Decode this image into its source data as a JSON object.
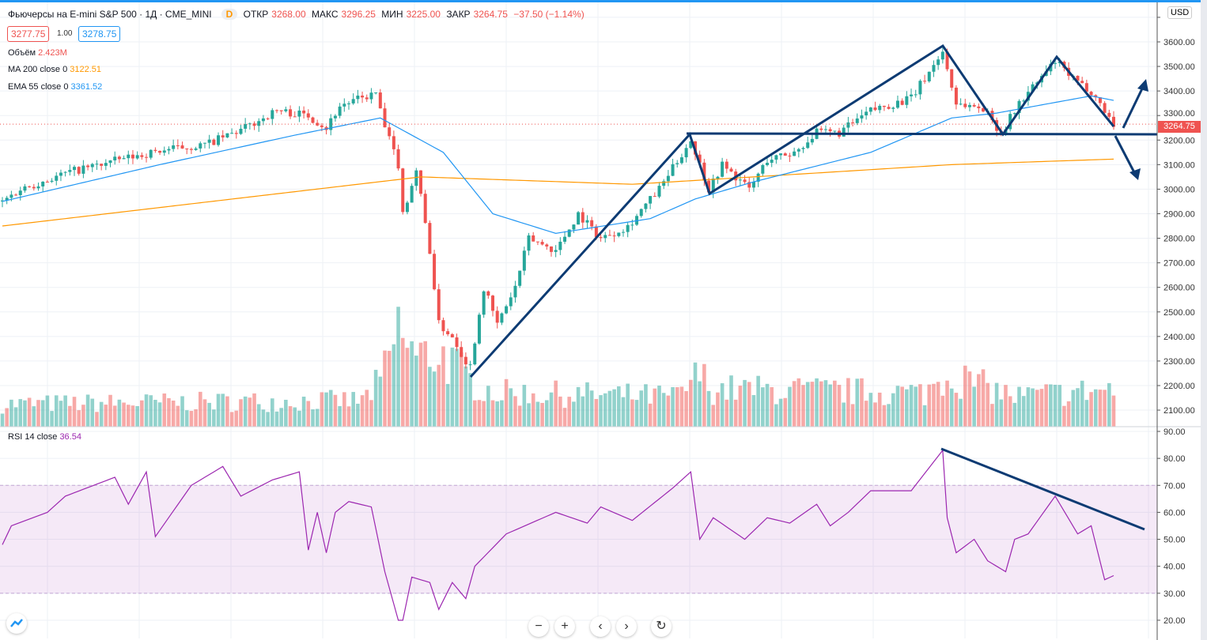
{
  "header": {
    "title": "Фьючерсы на E-mini S&P 500 · 1Д · CME_MINI",
    "badge": "D",
    "open_label": "ОТКР",
    "open": "3268.00",
    "high_label": "МАКС",
    "high": "3296.25",
    "low_label": "МИН",
    "low": "3225.00",
    "close_label": "ЗАКР",
    "close": "3264.75",
    "change": "−37.50 (−1.14%)"
  },
  "bid": "3277.75",
  "spread": "1.00",
  "ask": "3278.75",
  "legend": {
    "volume_label": "Объём",
    "volume": "2.423M",
    "ma_label": "MA 200 close 0",
    "ma": "3122.51",
    "ema_label": "EMA 55 close 0",
    "ema": "3361.52",
    "rsi_label": "RSI 14 close",
    "rsi": "36.54"
  },
  "currency": "USD",
  "last_price": "3264.75",
  "colors": {
    "up": "#26a69a",
    "down": "#ef5350",
    "ma": "#ff9800",
    "ema": "#2196f3",
    "rsi": "#9c27b0",
    "drawing": "#0d3b73"
  },
  "toolbar": {
    "zoom_out": "−",
    "zoom_in": "+",
    "back": "‹",
    "forward": "›",
    "reset": "↻"
  },
  "chart_data": {
    "type": "candlestick",
    "price_ticks": [
      3600,
      3500,
      3400,
      3300,
      3200,
      3100,
      3000,
      2900,
      2800,
      2700,
      2600,
      2500,
      2400,
      2300,
      2200,
      2100
    ],
    "price_range": [
      2060,
      3700
    ],
    "close_path": [
      [
        0,
        2950
      ],
      [
        4,
        3000
      ],
      [
        15,
        3070
      ],
      [
        26,
        3120
      ],
      [
        36,
        3160
      ],
      [
        45,
        3180
      ],
      [
        53,
        3240
      ],
      [
        61,
        3320
      ],
      [
        68,
        3300
      ],
      [
        72,
        3250
      ],
      [
        75,
        3340
      ],
      [
        83,
        3390
      ],
      [
        85,
        3250
      ],
      [
        88,
        3100
      ],
      [
        89,
        2900
      ],
      [
        92,
        3080
      ],
      [
        95,
        2750
      ],
      [
        97,
        2450
      ],
      [
        100,
        2400
      ],
      [
        103,
        2300
      ],
      [
        104,
        2280
      ],
      [
        107,
        2600
      ],
      [
        110,
        2450
      ],
      [
        114,
        2600
      ],
      [
        117,
        2800
      ],
      [
        123,
        2750
      ],
      [
        128,
        2900
      ],
      [
        133,
        2800
      ],
      [
        139,
        2850
      ],
      [
        146,
        3000
      ],
      [
        153,
        3200
      ],
      [
        155,
        3100
      ],
      [
        157,
        3000
      ],
      [
        160,
        3100
      ],
      [
        166,
        3000
      ],
      [
        170,
        3120
      ],
      [
        176,
        3150
      ],
      [
        181,
        3230
      ],
      [
        186,
        3230
      ],
      [
        193,
        3320
      ],
      [
        202,
        3370
      ],
      [
        209,
        3560
      ],
      [
        212,
        3350
      ],
      [
        218,
        3330
      ],
      [
        222,
        3230
      ],
      [
        226,
        3350
      ],
      [
        234,
        3520
      ],
      [
        239,
        3430
      ],
      [
        242,
        3400
      ],
      [
        247,
        3265
      ]
    ],
    "ma200_path": [
      [
        0,
        2850
      ],
      [
        93,
        3050
      ],
      [
        140,
        3020
      ],
      [
        167,
        3050
      ],
      [
        211,
        3100
      ],
      [
        247,
        3122.51
      ]
    ],
    "ema55_path": [
      [
        0,
        2950
      ],
      [
        35,
        3100
      ],
      [
        65,
        3220
      ],
      [
        84,
        3290
      ],
      [
        98,
        3150
      ],
      [
        109,
        2900
      ],
      [
        123,
        2820
      ],
      [
        144,
        2880
      ],
      [
        154,
        2960
      ],
      [
        167,
        3030
      ],
      [
        193,
        3150
      ],
      [
        211,
        3290
      ],
      [
        221,
        3310
      ],
      [
        242,
        3380
      ],
      [
        247,
        3361.52
      ]
    ],
    "volume_path": [
      [
        0,
        30
      ],
      [
        80,
        35
      ],
      [
        84,
        60
      ],
      [
        86,
        90
      ],
      [
        88,
        130
      ],
      [
        92,
        90
      ],
      [
        97,
        100
      ],
      [
        104,
        60
      ],
      [
        110,
        45
      ],
      [
        150,
        40
      ],
      [
        155,
        70
      ],
      [
        158,
        50
      ],
      [
        205,
        45
      ],
      [
        210,
        70
      ],
      [
        225,
        40
      ],
      [
        247,
        50
      ]
    ],
    "rsi_ticks": [
      90,
      80,
      70,
      60,
      50,
      40,
      30,
      20
    ],
    "rsi_range": [
      20,
      90
    ],
    "rsi_bands": [
      30,
      70
    ],
    "rsi_path": [
      [
        0,
        48
      ],
      [
        2,
        55
      ],
      [
        10,
        60
      ],
      [
        14,
        66
      ],
      [
        25,
        73
      ],
      [
        28,
        63
      ],
      [
        32,
        75
      ],
      [
        34,
        51
      ],
      [
        42,
        70
      ],
      [
        49,
        77
      ],
      [
        53,
        66
      ],
      [
        60,
        72
      ],
      [
        66,
        75
      ],
      [
        68,
        46
      ],
      [
        70,
        60
      ],
      [
        72,
        45
      ],
      [
        74,
        60
      ],
      [
        77,
        64
      ],
      [
        82,
        62
      ],
      [
        85,
        38
      ],
      [
        88,
        20
      ],
      [
        89,
        20
      ],
      [
        91,
        36
      ],
      [
        95,
        34
      ],
      [
        97,
        24
      ],
      [
        100,
        34
      ],
      [
        103,
        28
      ],
      [
        105,
        40
      ],
      [
        112,
        52
      ],
      [
        123,
        60
      ],
      [
        130,
        56
      ],
      [
        133,
        62
      ],
      [
        140,
        57
      ],
      [
        149,
        69
      ],
      [
        153,
        75
      ],
      [
        155,
        50
      ],
      [
        158,
        58
      ],
      [
        165,
        50
      ],
      [
        170,
        58
      ],
      [
        175,
        56
      ],
      [
        181,
        63
      ],
      [
        184,
        55
      ],
      [
        188,
        60
      ],
      [
        193,
        68
      ],
      [
        202,
        68
      ],
      [
        209,
        83
      ],
      [
        210,
        58
      ],
      [
        212,
        45
      ],
      [
        216,
        50
      ],
      [
        219,
        42
      ],
      [
        223,
        38
      ],
      [
        225,
        50
      ],
      [
        228,
        52
      ],
      [
        234,
        66
      ],
      [
        239,
        52
      ],
      [
        242,
        55
      ],
      [
        245,
        35
      ],
      [
        247,
        36.54
      ]
    ],
    "candle_count": 248
  }
}
